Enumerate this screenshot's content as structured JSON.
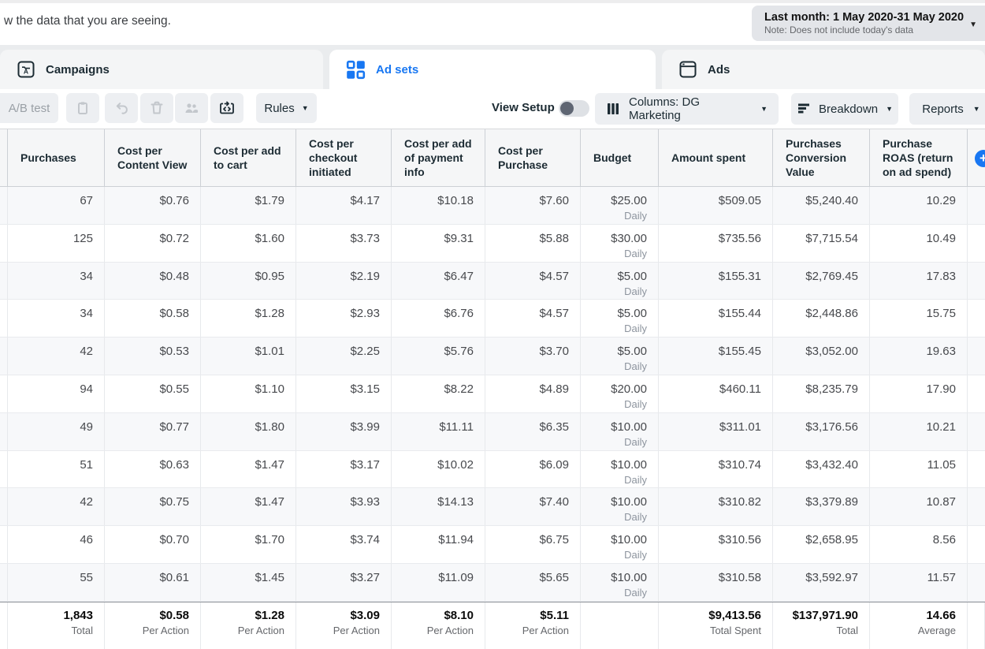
{
  "page": {
    "intro_text": "w the data that you are seeing."
  },
  "date_picker": {
    "label": "Last month: 1 May 2020-31 May 2020",
    "note": "Note: Does not include today's data"
  },
  "tabs": [
    {
      "label": "Campaigns",
      "active": false
    },
    {
      "label": "Ad sets",
      "active": true
    },
    {
      "label": "Ads",
      "active": false
    }
  ],
  "toolbar": {
    "ab_test_label": "A/B test",
    "rules_label": "Rules",
    "view_setup_label": "View Setup",
    "view_setup_on": false,
    "columns_label": "Columns: DG Marketing",
    "breakdown_label": "Breakdown",
    "reports_label": "Reports"
  },
  "colors": {
    "accent": "#1877f2"
  },
  "table": {
    "columns": [
      {
        "key": "purchases",
        "label": "Purchases"
      },
      {
        "key": "cost_per_content_view",
        "label": "Cost per Content View"
      },
      {
        "key": "cost_per_add_to_cart",
        "label": "Cost per add to cart"
      },
      {
        "key": "cost_per_checkout_initiated",
        "label": "Cost per checkout initiated"
      },
      {
        "key": "cost_per_add_of_payment_info",
        "label": "Cost per add of payment info"
      },
      {
        "key": "cost_per_purchase",
        "label": "Cost per Purchase"
      },
      {
        "key": "budget",
        "label": "Budget"
      },
      {
        "key": "amount_spent",
        "label": "Amount spent"
      },
      {
        "key": "purchases_conversion_value",
        "label": "Purchases Conversion Value"
      },
      {
        "key": "purchase_roas",
        "label": "Purchase ROAS (return on ad spend)"
      }
    ],
    "rows": [
      {
        "cells": [
          "67",
          "$0.76",
          "$1.79",
          "$4.17",
          "$10.18",
          "$7.60",
          "$25.00",
          "$509.05",
          "$5,240.40",
          "10.29"
        ],
        "budget_schedule": "Daily"
      },
      {
        "cells": [
          "125",
          "$0.72",
          "$1.60",
          "$3.73",
          "$9.31",
          "$5.88",
          "$30.00",
          "$735.56",
          "$7,715.54",
          "10.49"
        ],
        "budget_schedule": "Daily"
      },
      {
        "cells": [
          "34",
          "$0.48",
          "$0.95",
          "$2.19",
          "$6.47",
          "$4.57",
          "$5.00",
          "$155.31",
          "$2,769.45",
          "17.83"
        ],
        "budget_schedule": "Daily"
      },
      {
        "cells": [
          "34",
          "$0.58",
          "$1.28",
          "$2.93",
          "$6.76",
          "$4.57",
          "$5.00",
          "$155.44",
          "$2,448.86",
          "15.75"
        ],
        "budget_schedule": "Daily"
      },
      {
        "cells": [
          "42",
          "$0.53",
          "$1.01",
          "$2.25",
          "$5.76",
          "$3.70",
          "$5.00",
          "$155.45",
          "$3,052.00",
          "19.63"
        ],
        "budget_schedule": "Daily"
      },
      {
        "cells": [
          "94",
          "$0.55",
          "$1.10",
          "$3.15",
          "$8.22",
          "$4.89",
          "$20.00",
          "$460.11",
          "$8,235.79",
          "17.90"
        ],
        "budget_schedule": "Daily"
      },
      {
        "cells": [
          "49",
          "$0.77",
          "$1.80",
          "$3.99",
          "$11.11",
          "$6.35",
          "$10.00",
          "$311.01",
          "$3,176.56",
          "10.21"
        ],
        "budget_schedule": "Daily"
      },
      {
        "cells": [
          "51",
          "$0.63",
          "$1.47",
          "$3.17",
          "$10.02",
          "$6.09",
          "$10.00",
          "$310.74",
          "$3,432.40",
          "11.05"
        ],
        "budget_schedule": "Daily"
      },
      {
        "cells": [
          "42",
          "$0.75",
          "$1.47",
          "$3.93",
          "$14.13",
          "$7.40",
          "$10.00",
          "$310.82",
          "$3,379.89",
          "10.87"
        ],
        "budget_schedule": "Daily"
      },
      {
        "cells": [
          "46",
          "$0.70",
          "$1.70",
          "$3.74",
          "$11.94",
          "$6.75",
          "$10.00",
          "$310.56",
          "$2,658.95",
          "8.56"
        ],
        "budget_schedule": "Daily"
      },
      {
        "cells": [
          "55",
          "$0.61",
          "$1.45",
          "$3.27",
          "$11.09",
          "$5.65",
          "$10.00",
          "$310.58",
          "$3,592.97",
          "11.57"
        ],
        "budget_schedule": "Daily"
      }
    ],
    "totals": [
      {
        "value": "1,843",
        "label": "Total"
      },
      {
        "value": "$0.58",
        "label": "Per Action"
      },
      {
        "value": "$1.28",
        "label": "Per Action"
      },
      {
        "value": "$3.09",
        "label": "Per Action"
      },
      {
        "value": "$8.10",
        "label": "Per Action"
      },
      {
        "value": "$5.11",
        "label": "Per Action"
      },
      {
        "value": "",
        "label": ""
      },
      {
        "value": "$9,413.56",
        "label": "Total Spent"
      },
      {
        "value": "$137,971.90",
        "label": "Total"
      },
      {
        "value": "14.66",
        "label": "Average"
      }
    ]
  }
}
